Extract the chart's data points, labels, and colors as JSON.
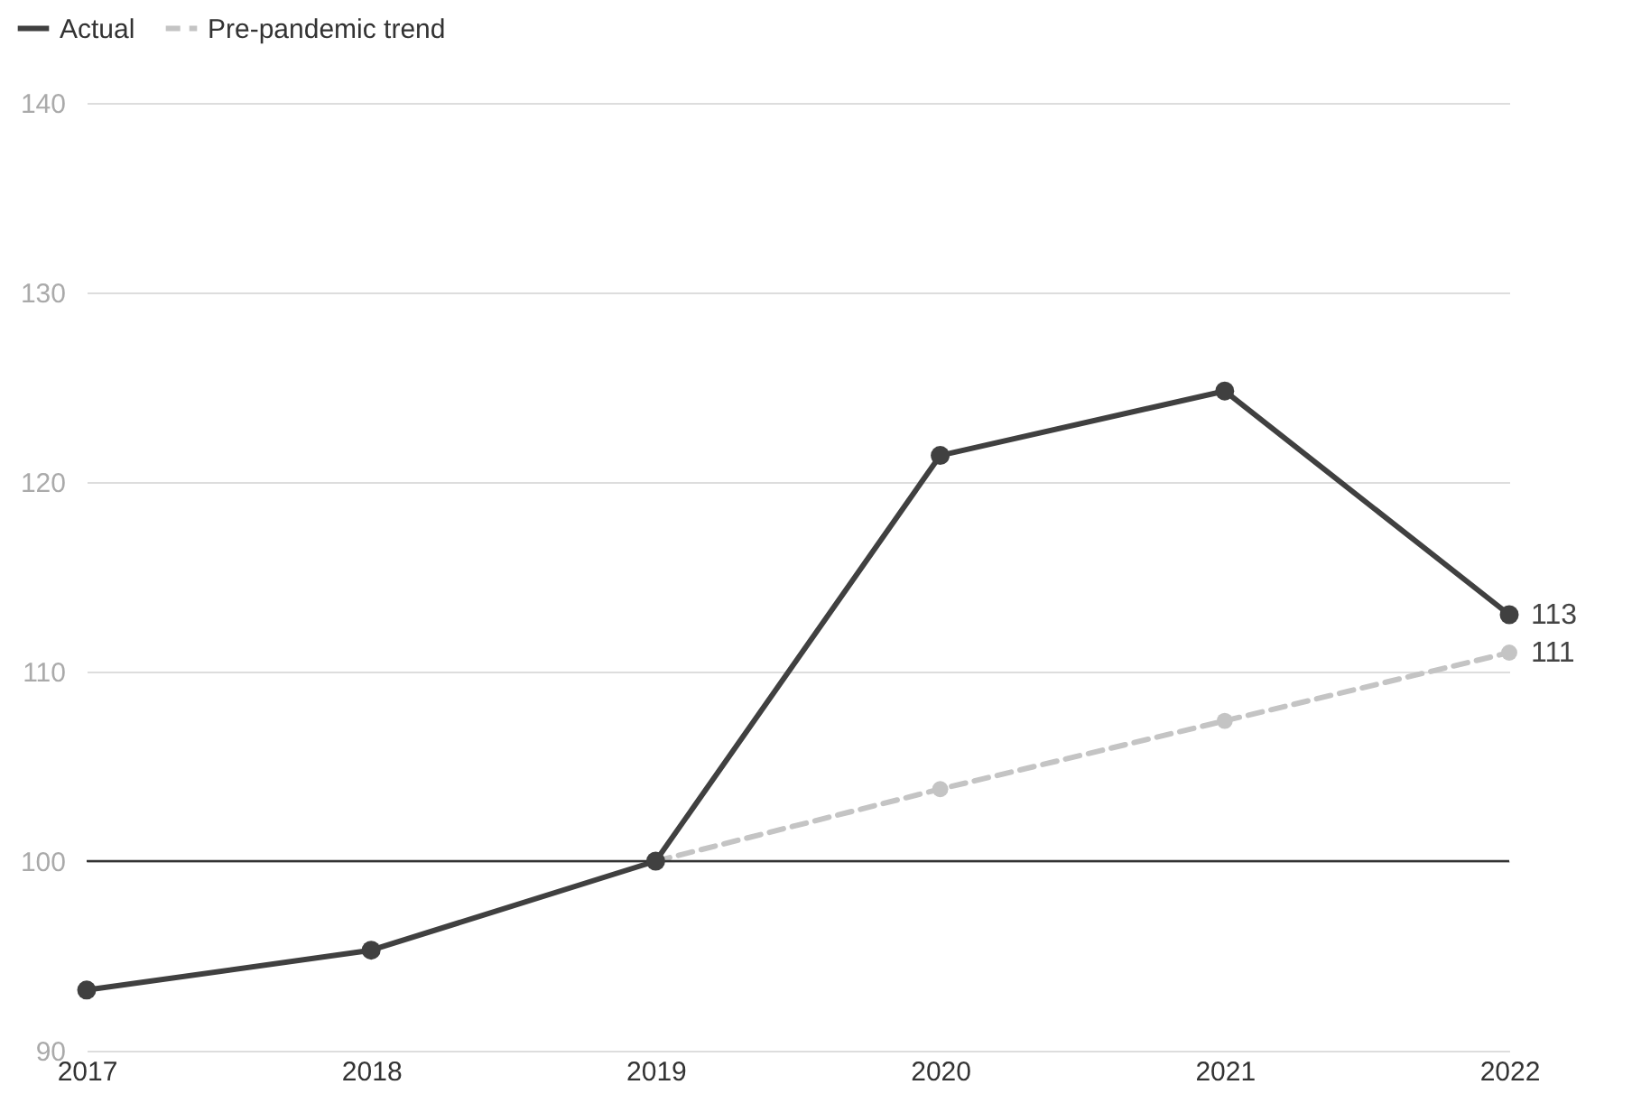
{
  "chart_data": {
    "type": "line",
    "categories": [
      "2017",
      "2018",
      "2019",
      "2020",
      "2021",
      "2022"
    ],
    "series": [
      {
        "name": "Actual",
        "color": "#404040",
        "line_style": "solid",
        "values": [
          93.2,
          95.3,
          100,
          121.4,
          124.8,
          113
        ],
        "value_labels": [
          null,
          null,
          null,
          null,
          null,
          "113"
        ]
      },
      {
        "name": "Pre-pandemic trend",
        "color": "#c4c4c4",
        "line_style": "dashed",
        "values": [
          null,
          null,
          100,
          103.8,
          107.4,
          111
        ],
        "value_labels": [
          null,
          null,
          null,
          null,
          null,
          "111"
        ]
      }
    ],
    "ylim": [
      90,
      140
    ],
    "yticks": [
      90,
      100,
      110,
      120,
      130,
      140
    ],
    "grid": "y",
    "legend": "top left",
    "marker": "circle",
    "ref_lines": [
      {
        "axis": "y",
        "value": 100,
        "color": "#333333",
        "line_style": "solid"
      }
    ]
  }
}
